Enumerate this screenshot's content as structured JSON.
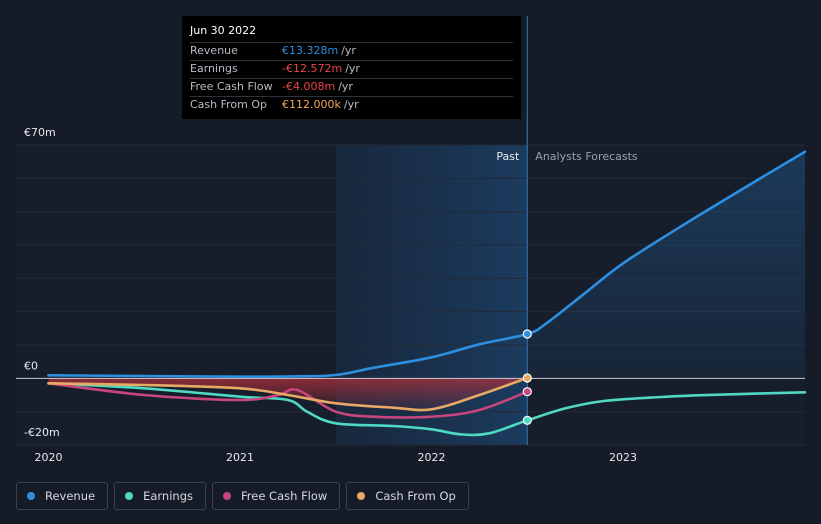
{
  "tooltip": {
    "date": "Jun 30 2022",
    "rows": [
      {
        "label": "Revenue",
        "value": "€13.328m",
        "unit": "/yr",
        "color": "#2e8fe0"
      },
      {
        "label": "Earnings",
        "value": "-€12.572m",
        "unit": "/yr",
        "color": "#e8474a"
      },
      {
        "label": "Free Cash Flow",
        "value": "-€4.008m",
        "unit": "/yr",
        "color": "#e8474a"
      },
      {
        "label": "Cash From Op",
        "value": "€112.000k",
        "unit": "/yr",
        "color": "#f0a858"
      }
    ]
  },
  "legend": [
    {
      "label": "Revenue",
      "color": "#2e8fe0"
    },
    {
      "label": "Earnings",
      "color": "#4fd8c2"
    },
    {
      "label": "Free Cash Flow",
      "color": "#c8457e"
    },
    {
      "label": "Cash From Op",
      "color": "#e8a866"
    }
  ],
  "chart_data": {
    "type": "line",
    "title": "",
    "xlabel": "",
    "ylabel": "",
    "ylim": [
      -20,
      70
    ],
    "xlim": [
      2020.0,
      2023.95
    ],
    "x_ticks": [
      {
        "x": 2020,
        "label": "2020"
      },
      {
        "x": 2021,
        "label": "2021"
      },
      {
        "x": 2022,
        "label": "2022"
      },
      {
        "x": 2023,
        "label": "2023"
      }
    ],
    "y_ticks": [
      {
        "y": 70,
        "label": "€70m"
      },
      {
        "y": 0,
        "label": "€0"
      },
      {
        "y": -20,
        "label": "-€20m"
      }
    ],
    "past_label": "Past",
    "forecast_label": "Analysts Forecasts",
    "past_start": 2021.5,
    "divider_x": 2022.5,
    "series": [
      {
        "name": "Revenue",
        "color": "#2e8fe0",
        "points": [
          [
            2020.0,
            0.9
          ],
          [
            2020.5,
            0.7
          ],
          [
            2021.0,
            0.5
          ],
          [
            2021.3,
            0.6
          ],
          [
            2021.5,
            1.0
          ],
          [
            2021.7,
            3.2
          ],
          [
            2022.0,
            6.3
          ],
          [
            2022.25,
            10.2
          ],
          [
            2022.5,
            13.3
          ],
          [
            2022.6,
            16.5
          ],
          [
            2022.8,
            25.5
          ],
          [
            2023.0,
            34.5
          ],
          [
            2023.3,
            45.5
          ],
          [
            2023.6,
            56.0
          ],
          [
            2023.95,
            68.0
          ]
        ],
        "marker": [
          2022.5,
          13.3
        ]
      },
      {
        "name": "Earnings",
        "color": "#4fd8c2",
        "points": [
          [
            2020.0,
            -1.5
          ],
          [
            2020.5,
            -3.0
          ],
          [
            2021.0,
            -5.5
          ],
          [
            2021.25,
            -6.5
          ],
          [
            2021.35,
            -10.0
          ],
          [
            2021.5,
            -13.5
          ],
          [
            2021.8,
            -14.3
          ],
          [
            2022.0,
            -15.3
          ],
          [
            2022.15,
            -16.8
          ],
          [
            2022.3,
            -16.5
          ],
          [
            2022.5,
            -12.6
          ],
          [
            2022.7,
            -9.0
          ],
          [
            2022.9,
            -6.8
          ],
          [
            2023.2,
            -5.6
          ],
          [
            2023.5,
            -4.9
          ],
          [
            2023.95,
            -4.2
          ]
        ],
        "marker": [
          2022.5,
          -12.6
        ]
      },
      {
        "name": "Free Cash Flow",
        "color": "#c8457e",
        "points": [
          [
            2020.0,
            -1.5
          ],
          [
            2020.5,
            -5.0
          ],
          [
            2021.0,
            -6.5
          ],
          [
            2021.2,
            -5.0
          ],
          [
            2021.3,
            -3.5
          ],
          [
            2021.5,
            -10.0
          ],
          [
            2021.7,
            -11.5
          ],
          [
            2022.0,
            -11.5
          ],
          [
            2022.25,
            -9.5
          ],
          [
            2022.5,
            -4.0
          ]
        ],
        "marker": [
          2022.5,
          -4.0
        ]
      },
      {
        "name": "Cash From Op",
        "color": "#e8a866",
        "points": [
          [
            2020.0,
            -1.5
          ],
          [
            2020.5,
            -2.0
          ],
          [
            2021.0,
            -3.0
          ],
          [
            2021.25,
            -5.0
          ],
          [
            2021.5,
            -7.5
          ],
          [
            2021.8,
            -8.8
          ],
          [
            2022.0,
            -9.3
          ],
          [
            2022.25,
            -5.0
          ],
          [
            2022.5,
            0.1
          ]
        ],
        "marker": [
          2022.5,
          0.1
        ]
      }
    ]
  }
}
